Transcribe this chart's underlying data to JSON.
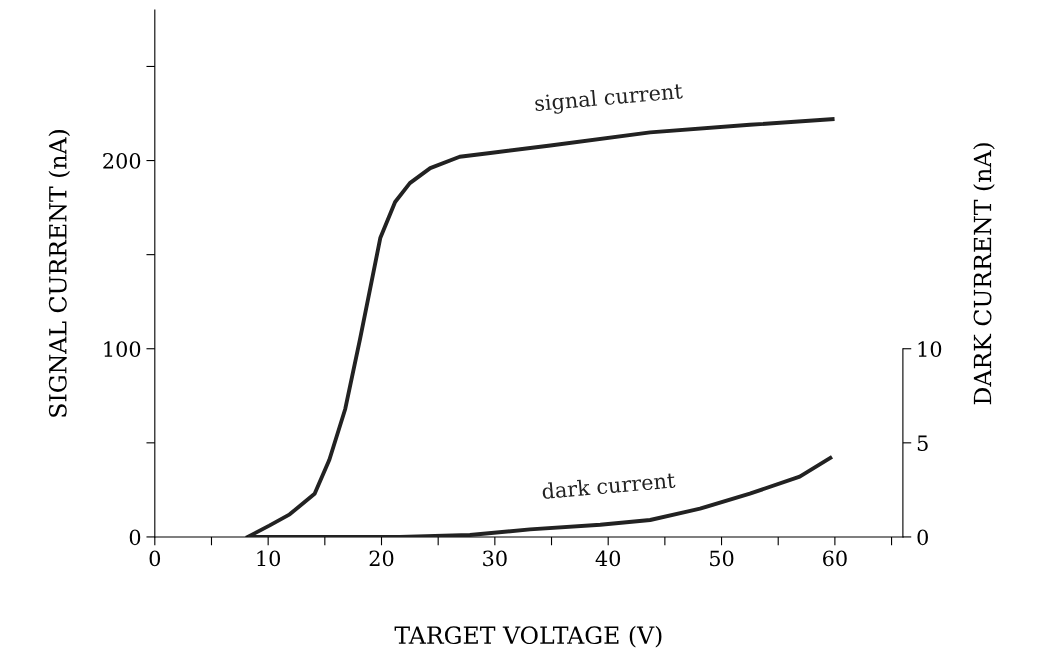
{
  "chart_data": {
    "type": "line",
    "xlabel": "TARGET VOLTAGE (V)",
    "ylabel": "SIGNAL CURRENT (nA)",
    "y2label": "DARK CURRENT (nA)",
    "xlim": [
      0,
      66
    ],
    "xticks": [
      0,
      {
        "value": 5,
        "label": null
      },
      10,
      {
        "value": 15,
        "label": null
      },
      20,
      {
        "value": 25,
        "label": null
      },
      30,
      {
        "value": 35,
        "label": null
      },
      40,
      {
        "value": 45,
        "label": null
      },
      50,
      {
        "value": 55,
        "label": null
      },
      60,
      {
        "value": 65,
        "label": null
      }
    ],
    "ylim": [
      0,
      280
    ],
    "yticks": [
      0,
      {
        "value": 50,
        "label": null
      },
      100,
      {
        "value": 150,
        "label": null
      },
      200,
      {
        "value": 250,
        "label": null
      }
    ],
    "y2lim": [
      0,
      28
    ],
    "y2ticks": [
      0,
      5,
      10
    ],
    "grid": false,
    "legend": false,
    "marker": "none",
    "line_style": "solid",
    "series": [
      {
        "name": "signal current",
        "color": "#222222",
        "x": [
          8.2,
          10.1,
          11.9,
          14.1,
          15.4,
          16.8,
          18.1,
          19.0,
          19.9,
          21.2,
          22.5,
          24.3,
          26.9,
          29.6,
          34.9,
          43.7,
          52.5,
          59.8
        ],
        "values": [
          0,
          6,
          12,
          23,
          41,
          68,
          105,
          132,
          159,
          178,
          188,
          196,
          202,
          204,
          208,
          215,
          219,
          222
        ]
      },
      {
        "name": "dark current",
        "color": "#222222",
        "axis": "y2",
        "x": [
          8.4,
          21.6,
          27.8,
          33.1,
          39.3,
          43.7,
          48.1,
          52.5,
          56.9,
          59.6
        ],
        "values": [
          0,
          0,
          0.1,
          0.4,
          0.65,
          0.9,
          1.5,
          2.3,
          3.2,
          4.2
        ]
      }
    ]
  }
}
